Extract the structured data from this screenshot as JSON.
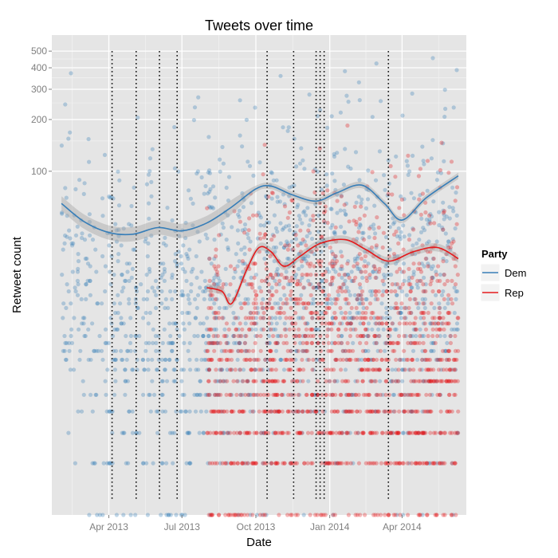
{
  "chart_data": {
    "type": "scatter",
    "title": "Tweets over time",
    "xlabel": "Date",
    "ylabel": "Retweet count",
    "y_scale": "log",
    "y_range": [
      1,
      620
    ],
    "y_ticks": [
      100,
      200,
      300,
      400,
      500
    ],
    "y_tick_labels": [
      "100",
      "200",
      "300",
      "400",
      "500"
    ],
    "x_range": [
      "2013-01-20",
      "2014-06-20"
    ],
    "x_ticks": [
      "2013-04-01",
      "2013-07-01",
      "2013-10-01",
      "2014-01-01",
      "2014-04-01"
    ],
    "x_tick_labels": [
      "Apr 2013",
      "Jul 2013",
      "Oct 2013",
      "Jan 2014",
      "Apr 2014"
    ],
    "grid": true,
    "legend": {
      "title": "Party",
      "position": "right",
      "entries": [
        {
          "label": "Dem",
          "color": "#377eb8"
        },
        {
          "label": "Rep",
          "color": "#e41a1c"
        }
      ]
    },
    "event_lines": [
      "2013-04-05",
      "2013-05-05",
      "2013-06-03",
      "2013-06-25",
      "2013-10-15",
      "2013-11-17",
      "2013-12-15",
      "2013-12-20",
      "2013-12-25",
      "2014-03-15"
    ],
    "series": [
      {
        "name": "Dem",
        "color": "#377eb8",
        "point_window": [
          "2013-02-01",
          "2014-06-10"
        ],
        "smooth_trend": [
          {
            "x": "2013-02-01",
            "y": 65
          },
          {
            "x": "2013-03-01",
            "y": 51
          },
          {
            "x": "2013-04-01",
            "y": 44
          },
          {
            "x": "2013-05-01",
            "y": 43
          },
          {
            "x": "2013-06-01",
            "y": 47
          },
          {
            "x": "2013-07-01",
            "y": 45
          },
          {
            "x": "2013-08-01",
            "y": 50
          },
          {
            "x": "2013-09-01",
            "y": 62
          },
          {
            "x": "2013-10-01",
            "y": 79
          },
          {
            "x": "2013-10-20",
            "y": 82
          },
          {
            "x": "2013-11-15",
            "y": 73
          },
          {
            "x": "2013-12-15",
            "y": 67
          },
          {
            "x": "2014-01-10",
            "y": 75
          },
          {
            "x": "2014-02-10",
            "y": 83
          },
          {
            "x": "2014-03-10",
            "y": 65
          },
          {
            "x": "2014-04-01",
            "y": 52
          },
          {
            "x": "2014-05-01",
            "y": 70
          },
          {
            "x": "2014-06-10",
            "y": 94
          }
        ]
      },
      {
        "name": "Rep",
        "color": "#e41a1c",
        "point_window": [
          "2013-08-01",
          "2014-06-10"
        ],
        "smooth_trend": [
          {
            "x": "2013-08-01",
            "y": 21
          },
          {
            "x": "2013-08-20",
            "y": 20
          },
          {
            "x": "2013-09-01",
            "y": 17
          },
          {
            "x": "2013-09-20",
            "y": 27
          },
          {
            "x": "2013-10-05",
            "y": 36
          },
          {
            "x": "2013-10-20",
            "y": 34
          },
          {
            "x": "2013-11-05",
            "y": 28
          },
          {
            "x": "2013-11-25",
            "y": 32
          },
          {
            "x": "2013-12-20",
            "y": 38
          },
          {
            "x": "2014-01-20",
            "y": 40
          },
          {
            "x": "2014-02-15",
            "y": 35
          },
          {
            "x": "2014-03-15",
            "y": 30
          },
          {
            "x": "2014-04-15",
            "y": 34
          },
          {
            "x": "2014-05-15",
            "y": 36
          },
          {
            "x": "2014-06-10",
            "y": 31
          }
        ]
      }
    ]
  }
}
